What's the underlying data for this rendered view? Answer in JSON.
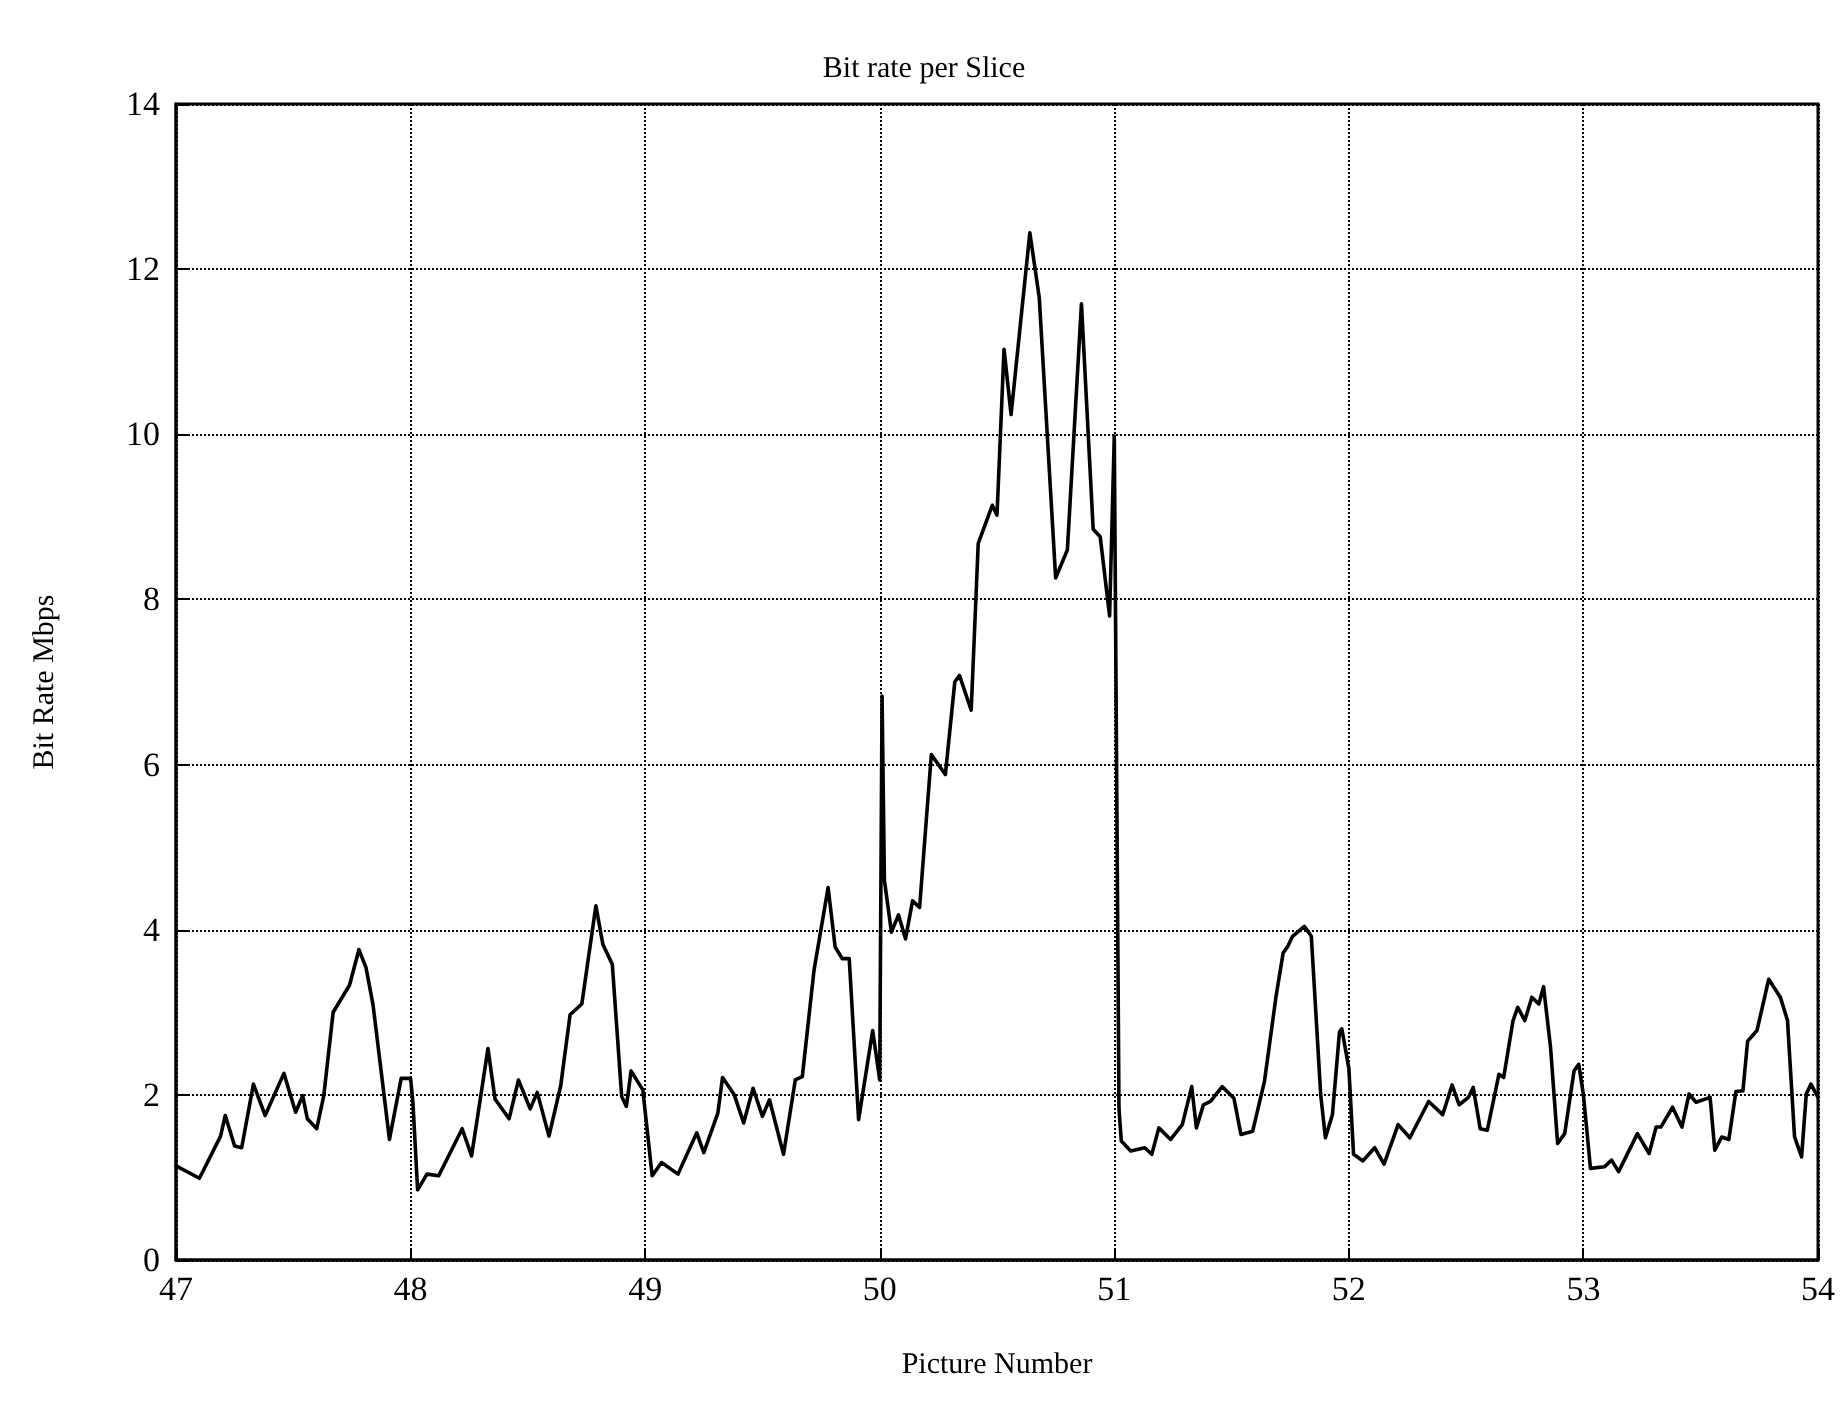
{
  "chart_data": {
    "type": "line",
    "title": "Bit rate per Slice",
    "xlabel": "Picture Number",
    "ylabel": "Bit Rate Mbps",
    "xlim": [
      47,
      54
    ],
    "xticks": [
      47,
      48,
      49,
      50,
      51,
      52,
      53,
      54
    ],
    "ylim": [
      0,
      14
    ],
    "yticks": [
      0,
      2,
      4,
      6,
      8,
      10,
      12,
      14
    ],
    "grid": true,
    "marker": "none",
    "line_style": "solid",
    "series": [
      {
        "color": "#000000",
        "x": [
          47.0,
          47.1,
          47.19,
          47.21,
          47.25,
          47.28,
          47.33,
          47.38,
          47.46,
          47.51,
          47.54,
          47.56,
          47.6,
          47.63,
          47.67,
          47.74,
          47.78,
          47.81,
          47.84,
          47.91,
          47.96,
          48.0,
          48.01,
          48.03,
          48.07,
          48.12,
          48.22,
          48.26,
          48.33,
          48.36,
          48.42,
          48.46,
          48.51,
          48.54,
          48.59,
          48.64,
          48.68,
          48.73,
          48.79,
          48.82,
          48.86,
          48.9,
          48.92,
          48.94,
          48.99,
          49.03,
          49.07,
          49.14,
          49.22,
          49.25,
          49.31,
          49.33,
          49.38,
          49.42,
          49.46,
          49.5,
          49.53,
          49.59,
          49.64,
          49.67,
          49.72,
          49.78,
          49.81,
          49.84,
          49.87,
          49.91,
          49.97,
          50.0,
          50.01,
          50.02,
          50.05,
          50.08,
          50.11,
          50.14,
          50.17,
          50.22,
          50.28,
          50.32,
          50.34,
          50.39,
          50.42,
          50.48,
          50.5,
          50.53,
          50.56,
          50.64,
          50.68,
          50.75,
          50.8,
          50.86,
          50.91,
          50.94,
          50.98,
          51.0,
          51.02,
          51.03,
          51.07,
          51.13,
          51.16,
          51.19,
          51.24,
          51.29,
          51.33,
          51.35,
          51.38,
          51.41,
          51.46,
          51.51,
          51.54,
          51.59,
          51.64,
          51.69,
          51.72,
          51.74,
          51.76,
          51.81,
          51.84,
          51.88,
          51.9,
          51.93,
          51.96,
          51.97,
          52.0,
          52.02,
          52.06,
          52.11,
          52.15,
          52.21,
          52.26,
          52.34,
          52.4,
          52.44,
          52.47,
          52.51,
          52.53,
          52.56,
          52.59,
          52.64,
          52.66,
          52.7,
          52.72,
          52.75,
          52.78,
          52.81,
          52.83,
          52.86,
          52.89,
          52.92,
          52.96,
          52.98,
          53.0,
          53.03,
          53.09,
          53.12,
          53.15,
          53.23,
          53.28,
          53.31,
          53.33,
          53.38,
          53.42,
          53.45,
          53.48,
          53.54,
          53.56,
          53.59,
          53.62,
          53.65,
          53.68,
          53.7,
          53.74,
          53.79,
          53.84,
          53.87,
          53.9,
          53.93,
          53.95,
          53.97,
          54.0
        ],
        "values": [
          1.14,
          0.99,
          1.5,
          1.75,
          1.38,
          1.36,
          2.13,
          1.75,
          2.26,
          1.79,
          1.99,
          1.71,
          1.59,
          1.99,
          3.0,
          3.33,
          3.76,
          3.54,
          3.09,
          1.46,
          2.2,
          2.2,
          1.91,
          0.85,
          1.04,
          1.02,
          1.59,
          1.26,
          2.56,
          1.95,
          1.71,
          2.18,
          1.83,
          2.03,
          1.5,
          2.11,
          2.97,
          3.1,
          4.29,
          3.82,
          3.58,
          1.98,
          1.86,
          2.29,
          2.06,
          1.02,
          1.18,
          1.04,
          1.54,
          1.3,
          1.78,
          2.21,
          2.0,
          1.66,
          2.08,
          1.74,
          1.94,
          1.28,
          2.18,
          2.22,
          3.51,
          4.51,
          3.79,
          3.65,
          3.65,
          1.7,
          2.78,
          2.18,
          6.83,
          4.6,
          3.97,
          4.18,
          3.89,
          4.35,
          4.27,
          6.12,
          5.88,
          7.0,
          7.08,
          6.66,
          8.68,
          9.14,
          9.02,
          11.03,
          10.24,
          12.44,
          11.66,
          8.26,
          8.6,
          11.58,
          8.85,
          8.76,
          7.8,
          9.98,
          1.83,
          1.44,
          1.32,
          1.36,
          1.28,
          1.6,
          1.46,
          1.64,
          2.1,
          1.6,
          1.88,
          1.92,
          2.1,
          1.96,
          1.52,
          1.56,
          2.16,
          3.2,
          3.72,
          3.8,
          3.92,
          4.04,
          3.92,
          2.0,
          1.48,
          1.76,
          2.76,
          2.8,
          2.32,
          1.28,
          1.2,
          1.36,
          1.16,
          1.64,
          1.48,
          1.92,
          1.76,
          2.12,
          1.88,
          1.97,
          2.09,
          1.59,
          1.57,
          2.25,
          2.21,
          2.9,
          3.06,
          2.9,
          3.18,
          3.1,
          3.31,
          2.57,
          1.41,
          1.53,
          2.29,
          2.37,
          2.0,
          1.11,
          1.13,
          1.21,
          1.07,
          1.53,
          1.29,
          1.61,
          1.61,
          1.85,
          1.61,
          2.01,
          1.91,
          1.97,
          1.33,
          1.49,
          1.46,
          2.04,
          2.05,
          2.65,
          2.78,
          3.4,
          3.18,
          2.9,
          1.49,
          1.25,
          2.01,
          2.13,
          1.97
        ]
      }
    ]
  }
}
